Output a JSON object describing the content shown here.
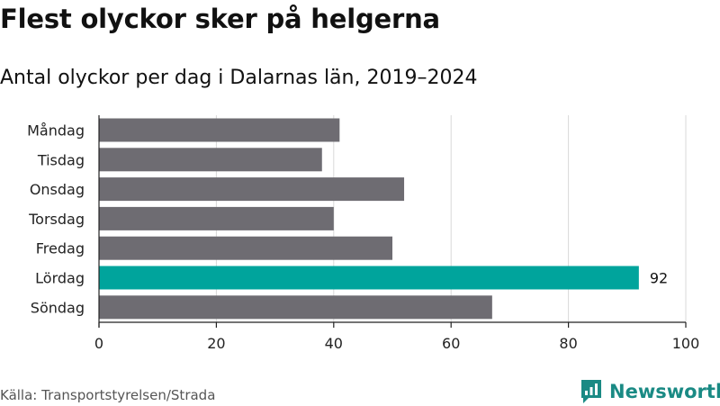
{
  "title": "Flest olyckor sker på helgerna",
  "subtitle": "Antal olyckor per dag i Dalarnas län, 2019–2024",
  "source": "Källa: Transportstyrelsen/Strada",
  "logo": {
    "name": "Newsworthy",
    "icon": "newsworthy-logo-icon"
  },
  "colors": {
    "default_bar": "#6e6c72",
    "highlight_bar": "#00a49c",
    "grid": "#d9d9d9",
    "axis": "#222222",
    "brand": "#1a8a84"
  },
  "chart_data": {
    "type": "bar",
    "orientation": "horizontal",
    "categories": [
      "Måndag",
      "Tisdag",
      "Onsdag",
      "Torsdag",
      "Fredag",
      "Lördag",
      "Söndag"
    ],
    "values": [
      41,
      38,
      52,
      40,
      50,
      92,
      67
    ],
    "highlight_index": 5,
    "data_labels": [
      null,
      null,
      null,
      null,
      null,
      "92",
      null
    ],
    "xlim": [
      0,
      100
    ],
    "xticks": [
      0,
      20,
      40,
      60,
      80,
      100
    ],
    "grid": true
  }
}
